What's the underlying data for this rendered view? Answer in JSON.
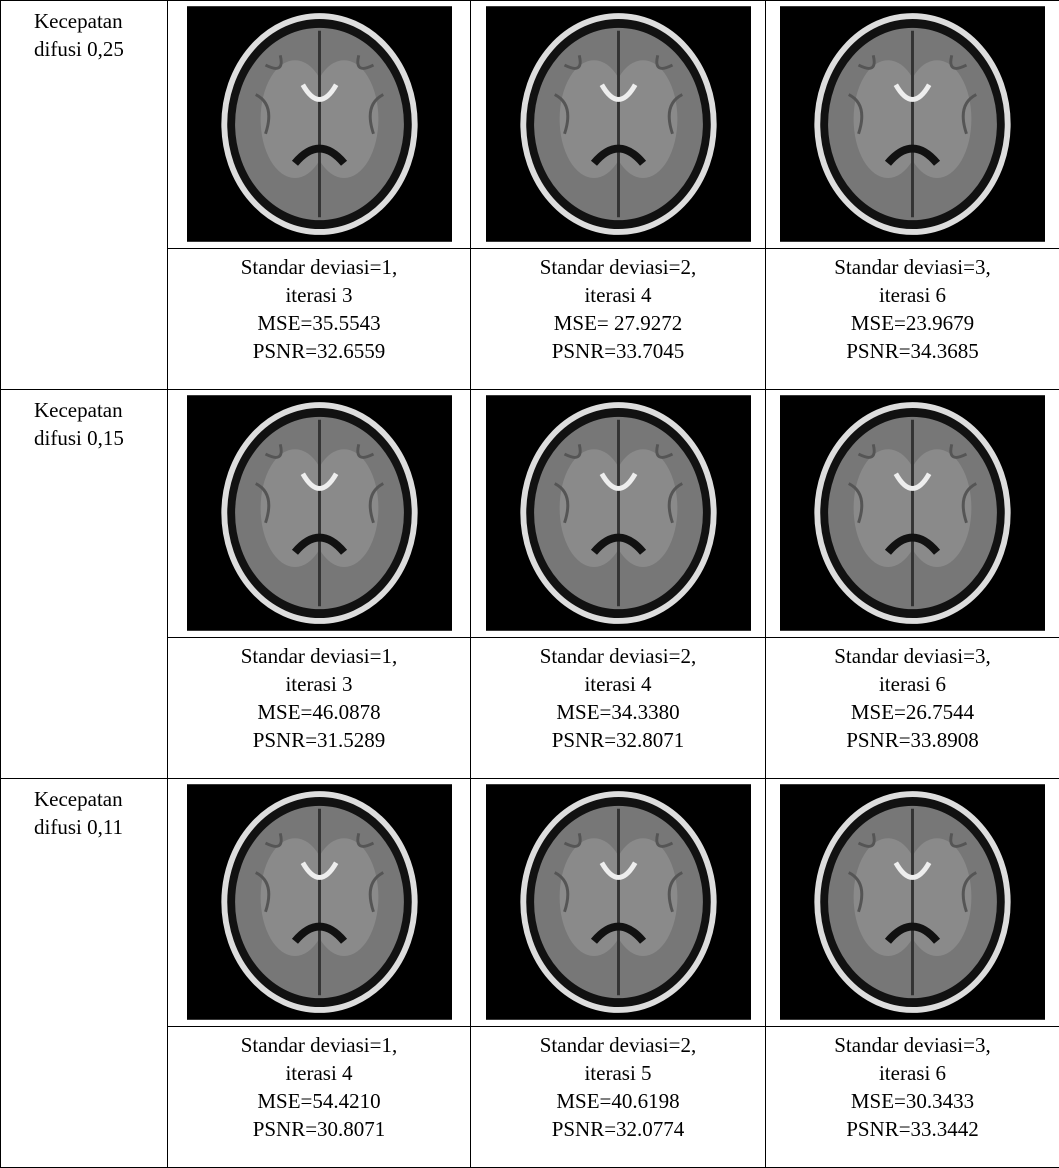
{
  "table": {
    "rows": [
      {
        "label": [
          "Kecepatan",
          "difusi 0,25"
        ],
        "cells": [
          {
            "lines": [
              "Standar deviasi=1,",
              "iterasi 3",
              "MSE=35.5543",
              "PSNR=32.6559"
            ]
          },
          {
            "lines": [
              "Standar deviasi=2,",
              "iterasi 4",
              "MSE= 27.9272",
              "PSNR=33.7045"
            ]
          },
          {
            "lines": [
              "Standar deviasi=3,",
              "iterasi 6",
              "MSE=23.9679",
              "PSNR=34.3685"
            ]
          }
        ]
      },
      {
        "label": [
          "Kecepatan",
          "difusi 0,15"
        ],
        "cells": [
          {
            "lines": [
              "Standar deviasi=1,",
              "iterasi 3",
              "MSE=46.0878",
              "PSNR=31.5289"
            ]
          },
          {
            "lines": [
              "Standar deviasi=2,",
              "iterasi 4",
              "MSE=34.3380",
              "PSNR=32.8071"
            ]
          },
          {
            "lines": [
              "Standar deviasi=3,",
              "iterasi 6",
              "MSE=26.7544",
              "PSNR=33.8908"
            ]
          }
        ]
      },
      {
        "label": [
          "Kecepatan",
          "difusi 0,11"
        ],
        "cells": [
          {
            "lines": [
              "Standar deviasi=1,",
              "iterasi 4",
              "MSE=54.4210",
              "PSNR=30.8071"
            ]
          },
          {
            "lines": [
              "Standar deviasi=2,",
              "iterasi 5",
              "MSE=40.6198",
              "PSNR=32.0774"
            ]
          },
          {
            "lines": [
              "Standar deviasi=3,",
              "iterasi 6",
              "MSE=30.3433",
              "PSNR=33.3442"
            ]
          }
        ]
      }
    ]
  }
}
